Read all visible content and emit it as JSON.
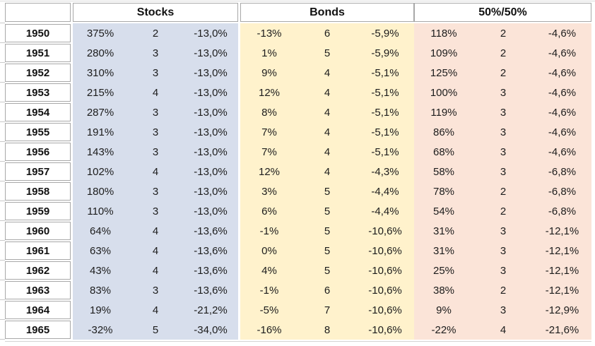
{
  "chart_data": {
    "type": "table",
    "title": "",
    "row_header": "year",
    "groups": [
      "Stocks",
      "Bonds",
      "50%/50%"
    ],
    "columns_per_group": 3,
    "rows": [
      {
        "year": "1950",
        "stocks": [
          "375%",
          "2",
          "-13,0%"
        ],
        "bonds": [
          "-13%",
          "6",
          "-5,9%"
        ],
        "fifty": [
          "118%",
          "2",
          "-4,6%"
        ]
      },
      {
        "year": "1951",
        "stocks": [
          "280%",
          "3",
          "-13,0%"
        ],
        "bonds": [
          "1%",
          "5",
          "-5,9%"
        ],
        "fifty": [
          "109%",
          "2",
          "-4,6%"
        ]
      },
      {
        "year": "1952",
        "stocks": [
          "310%",
          "3",
          "-13,0%"
        ],
        "bonds": [
          "9%",
          "4",
          "-5,1%"
        ],
        "fifty": [
          "125%",
          "2",
          "-4,6%"
        ]
      },
      {
        "year": "1953",
        "stocks": [
          "215%",
          "4",
          "-13,0%"
        ],
        "bonds": [
          "12%",
          "4",
          "-5,1%"
        ],
        "fifty": [
          "100%",
          "3",
          "-4,6%"
        ]
      },
      {
        "year": "1954",
        "stocks": [
          "287%",
          "3",
          "-13,0%"
        ],
        "bonds": [
          "8%",
          "4",
          "-5,1%"
        ],
        "fifty": [
          "119%",
          "3",
          "-4,6%"
        ]
      },
      {
        "year": "1955",
        "stocks": [
          "191%",
          "3",
          "-13,0%"
        ],
        "bonds": [
          "7%",
          "4",
          "-5,1%"
        ],
        "fifty": [
          "86%",
          "3",
          "-4,6%"
        ]
      },
      {
        "year": "1956",
        "stocks": [
          "143%",
          "3",
          "-13,0%"
        ],
        "bonds": [
          "7%",
          "4",
          "-5,1%"
        ],
        "fifty": [
          "68%",
          "3",
          "-4,6%"
        ]
      },
      {
        "year": "1957",
        "stocks": [
          "102%",
          "4",
          "-13,0%"
        ],
        "bonds": [
          "12%",
          "4",
          "-4,3%"
        ],
        "fifty": [
          "58%",
          "3",
          "-6,8%"
        ]
      },
      {
        "year": "1958",
        "stocks": [
          "180%",
          "3",
          "-13,0%"
        ],
        "bonds": [
          "3%",
          "5",
          "-4,4%"
        ],
        "fifty": [
          "78%",
          "2",
          "-6,8%"
        ]
      },
      {
        "year": "1959",
        "stocks": [
          "110%",
          "3",
          "-13,0%"
        ],
        "bonds": [
          "6%",
          "5",
          "-4,4%"
        ],
        "fifty": [
          "54%",
          "2",
          "-6,8%"
        ]
      },
      {
        "year": "1960",
        "stocks": [
          "64%",
          "4",
          "-13,6%"
        ],
        "bonds": [
          "-1%",
          "5",
          "-10,6%"
        ],
        "fifty": [
          "31%",
          "3",
          "-12,1%"
        ]
      },
      {
        "year": "1961",
        "stocks": [
          "63%",
          "4",
          "-13,6%"
        ],
        "bonds": [
          "0%",
          "5",
          "-10,6%"
        ],
        "fifty": [
          "31%",
          "3",
          "-12,1%"
        ]
      },
      {
        "year": "1962",
        "stocks": [
          "43%",
          "4",
          "-13,6%"
        ],
        "bonds": [
          "4%",
          "5",
          "-10,6%"
        ],
        "fifty": [
          "25%",
          "3",
          "-12,1%"
        ]
      },
      {
        "year": "1963",
        "stocks": [
          "83%",
          "3",
          "-13,6%"
        ],
        "bonds": [
          "-1%",
          "6",
          "-10,6%"
        ],
        "fifty": [
          "38%",
          "2",
          "-12,1%"
        ]
      },
      {
        "year": "1964",
        "stocks": [
          "19%",
          "4",
          "-21,2%"
        ],
        "bonds": [
          "-5%",
          "7",
          "-10,6%"
        ],
        "fifty": [
          "9%",
          "3",
          "-12,9%"
        ]
      },
      {
        "year": "1965",
        "stocks": [
          "-32%",
          "5",
          "-34,0%"
        ],
        "bonds": [
          "-16%",
          "8",
          "-10,6%"
        ],
        "fifty": [
          "-22%",
          "4",
          "-21,6%"
        ]
      }
    ],
    "colors": {
      "stocks_fill": "#D7DEEC",
      "bonds_fill": "#FFF2CC",
      "fifty_fill": "#FBE4D8",
      "cell_border": "#A8A8A8",
      "text": "#1C1C1C"
    },
    "layout": {
      "grid": "off-inside-groups",
      "header_position": "top",
      "row_count": 16
    }
  }
}
